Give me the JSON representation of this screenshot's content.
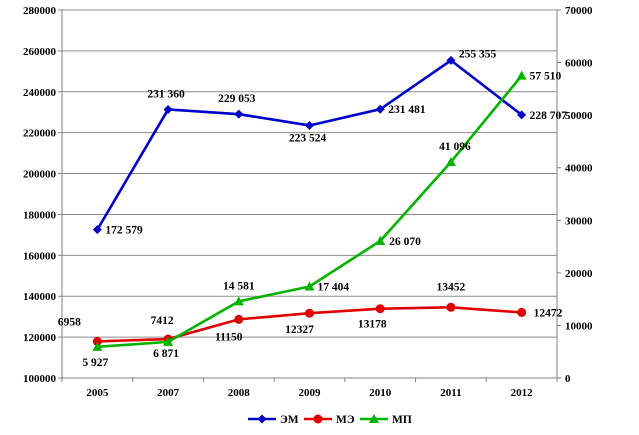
{
  "chart_data": {
    "type": "line",
    "categories": [
      "2005",
      "2007",
      "2008",
      "2009",
      "2010",
      "2011",
      "2012"
    ],
    "y_left": {
      "min": 100000,
      "max": 280000,
      "step": 20000,
      "ticks": [
        "100000",
        "120000",
        "140000",
        "160000",
        "180000",
        "200000",
        "220000",
        "240000",
        "260000",
        "280000"
      ]
    },
    "y_right": {
      "min": 0,
      "max": 70000,
      "step": 10000,
      "ticks": [
        "0",
        "10000",
        "20000",
        "30000",
        "40000",
        "50000",
        "60000",
        "70000"
      ]
    },
    "grid": true,
    "legend_position": "bottom",
    "series": [
      {
        "name": "ЭМ",
        "axis": "left",
        "color": "#0000cc",
        "marker": "diamond",
        "values": [
          172579,
          231360,
          229053,
          223524,
          231481,
          255355,
          228707
        ],
        "labels": [
          "172 579",
          "231 360",
          "229 053",
          "223 524",
          "231 481",
          "255 355",
          "228 707"
        ]
      },
      {
        "name": "МЭ",
        "axis": "right",
        "color": "#e00000",
        "marker": "circle",
        "values": [
          6958,
          7412,
          11150,
          12327,
          13178,
          13452,
          12472
        ],
        "labels": [
          "6958",
          "7412",
          "11150",
          "12327",
          "13178",
          "13452",
          "12472"
        ]
      },
      {
        "name": "МП",
        "axis": "right",
        "color": "#00b400",
        "marker": "triangle",
        "values": [
          5927,
          6871,
          14581,
          17404,
          26070,
          41096,
          57510
        ],
        "labels": [
          "5 927",
          "6 871",
          "14 581",
          "17 404",
          "26 070",
          "41 096",
          "57 510"
        ]
      }
    ]
  }
}
